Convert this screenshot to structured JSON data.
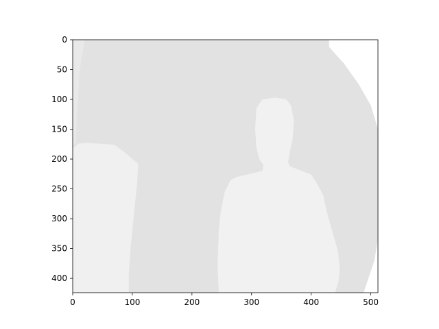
{
  "chart_data": {
    "type": "heatmap",
    "title": "",
    "xlabel": "",
    "ylabel": "",
    "xlim": [
      0,
      512
    ],
    "ylim": [
      424,
      0
    ],
    "image_size": [
      512,
      424
    ],
    "colormap": "grayscale (higher values lighter)",
    "x_ticks": [
      0,
      100,
      200,
      300,
      400,
      500
    ],
    "y_ticks": [
      0,
      50,
      100,
      150,
      200,
      250,
      300,
      350,
      400
    ],
    "x_tick_labels": [
      "0",
      "100",
      "200",
      "300",
      "400",
      "500"
    ],
    "y_tick_labels": [
      "0",
      "50",
      "100",
      "150",
      "200",
      "250",
      "300",
      "350",
      "400"
    ],
    "grid": false,
    "legend": false,
    "regions": [
      {
        "name": "background",
        "level": "light gray",
        "color": "#e2e2e2"
      },
      {
        "name": "person",
        "level": "near white",
        "color": "#f1f1f1",
        "outline": [
          [
            245,
            424
          ],
          [
            243,
            380
          ],
          [
            245,
            320
          ],
          [
            248,
            290
          ],
          [
            255,
            255
          ],
          [
            265,
            235
          ],
          [
            275,
            230
          ],
          [
            292,
            226
          ],
          [
            318,
            220
          ],
          [
            320,
            210
          ],
          [
            313,
            200
          ],
          [
            308,
            180
          ],
          [
            306,
            150
          ],
          [
            308,
            115
          ],
          [
            318,
            100
          ],
          [
            340,
            97
          ],
          [
            358,
            100
          ],
          [
            366,
            110
          ],
          [
            371,
            135
          ],
          [
            369,
            165
          ],
          [
            364,
            190
          ],
          [
            361,
            205
          ],
          [
            364,
            212
          ],
          [
            385,
            220
          ],
          [
            400,
            226
          ],
          [
            408,
            238
          ],
          [
            420,
            260
          ],
          [
            428,
            295
          ],
          [
            438,
            330
          ],
          [
            445,
            355
          ],
          [
            448,
            385
          ],
          [
            446,
            405
          ],
          [
            440,
            424
          ]
        ]
      },
      {
        "name": "left-object",
        "level": "near white",
        "color": "#f0f0f0",
        "outline": [
          [
            0,
            424
          ],
          [
            0,
            182
          ],
          [
            10,
            174
          ],
          [
            25,
            173
          ],
          [
            42,
            174
          ],
          [
            70,
            176
          ],
          [
            85,
            187
          ],
          [
            100,
            200
          ],
          [
            110,
            208
          ],
          [
            108,
            240
          ],
          [
            103,
            290
          ],
          [
            97,
            350
          ],
          [
            94,
            395
          ],
          [
            94,
            424
          ]
        ]
      },
      {
        "name": "top-right-noise",
        "level": "white",
        "color": "#ffffff",
        "outline": [
          [
            430,
            0
          ],
          [
            512,
            0
          ],
          [
            512,
            150
          ],
          [
            500,
            110
          ],
          [
            480,
            75
          ],
          [
            455,
            40
          ],
          [
            430,
            12
          ]
        ]
      },
      {
        "name": "bottom-right-noise",
        "level": "white",
        "color": "#ffffff",
        "outline": [
          [
            488,
            424
          ],
          [
            512,
            424
          ],
          [
            512,
            335
          ],
          [
            506,
            370
          ],
          [
            496,
            400
          ]
        ]
      },
      {
        "name": "left-edge-strip",
        "level": "light gray",
        "color": "#e9e9e9",
        "outline": [
          [
            0,
            0
          ],
          [
            20,
            0
          ],
          [
            12,
            50
          ],
          [
            8,
            110
          ],
          [
            5,
            174
          ],
          [
            0,
            180
          ]
        ]
      }
    ]
  }
}
